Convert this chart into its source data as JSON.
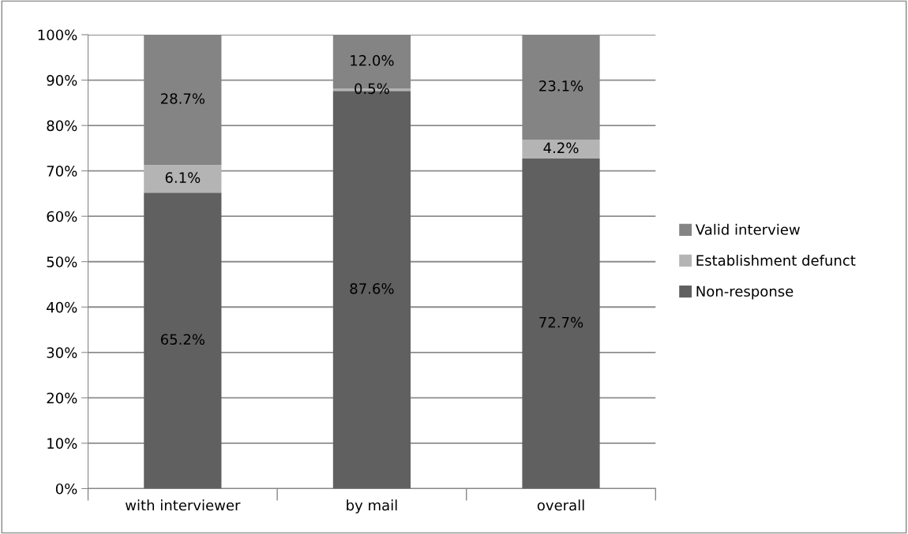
{
  "chart_data": {
    "type": "bar",
    "stacked": true,
    "categories": [
      "with interviewer",
      "by mail",
      "overall"
    ],
    "series": [
      {
        "name": "Non-response",
        "color": "#606060",
        "values": [
          65.2,
          87.6,
          72.7
        ],
        "value_labels": [
          "65.2%",
          "87.6%",
          "72.7%"
        ]
      },
      {
        "name": "Establishment defunct",
        "color": "#b4b4b4",
        "values": [
          6.1,
          0.5,
          4.2
        ],
        "value_labels": [
          "6.1%",
          "0.5%",
          "4.2%"
        ]
      },
      {
        "name": "Valid interview",
        "color": "#848484",
        "values": [
          28.7,
          12.0,
          23.1
        ],
        "value_labels": [
          "28.7%",
          "12.0%",
          "23.1%"
        ]
      }
    ],
    "ylim": [
      0,
      100
    ],
    "yticks": [
      {
        "value": 0,
        "label": "0%"
      },
      {
        "value": 10,
        "label": "10%"
      },
      {
        "value": 20,
        "label": "20%"
      },
      {
        "value": 30,
        "label": "30%"
      },
      {
        "value": 40,
        "label": "40%"
      },
      {
        "value": 50,
        "label": "50%"
      },
      {
        "value": 60,
        "label": "60%"
      },
      {
        "value": 70,
        "label": "70%"
      },
      {
        "value": 80,
        "label": "80%"
      },
      {
        "value": 90,
        "label": "90%"
      },
      {
        "value": 100,
        "label": "100%"
      }
    ],
    "grid": "y",
    "legend": "right"
  }
}
